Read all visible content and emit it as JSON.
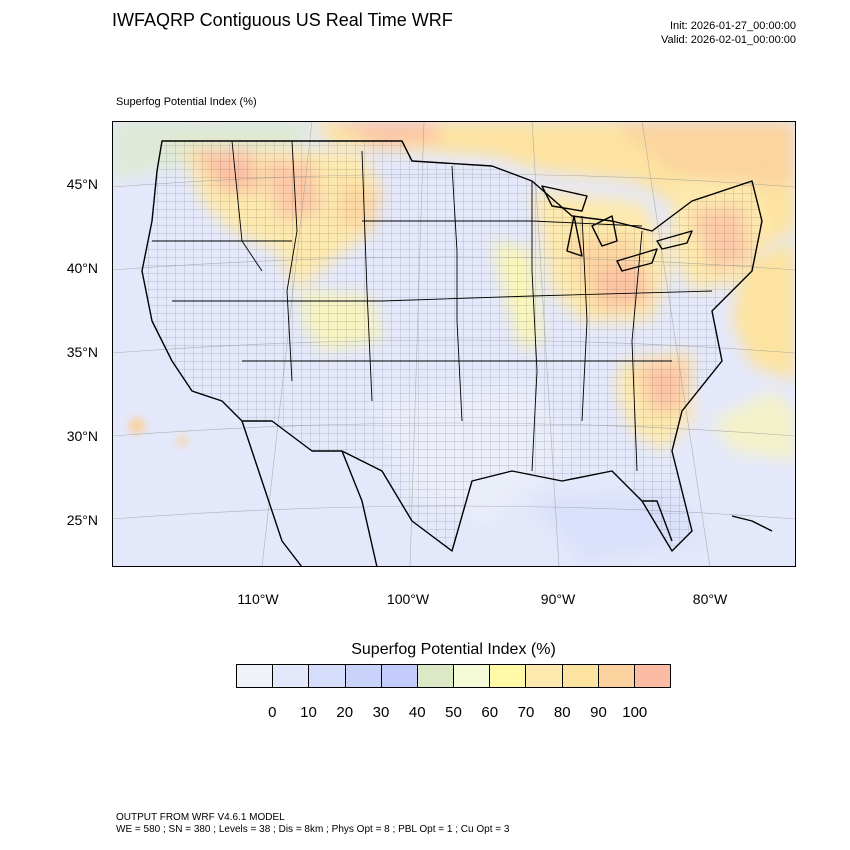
{
  "header": {
    "title": "IWFAQRP Contiguous US Real Time WRF",
    "init": "Init: 2026-01-27_00:00:00",
    "valid": "Valid: 2026-02-01_00:00:00"
  },
  "field_label": "Superfog Potential Index   (%)",
  "axes": {
    "lat_labels": [
      "45°N",
      "40°N",
      "35°N",
      "30°N",
      "25°N"
    ],
    "lon_labels": [
      "110°W",
      "100°W",
      "90°W",
      "80°W"
    ]
  },
  "colorbar": {
    "title": "Superfog Potential Index  (%)",
    "ticks": [
      "0",
      "10",
      "20",
      "30",
      "40",
      "50",
      "60",
      "70",
      "80",
      "90",
      "100"
    ],
    "colors": [
      "#eff2f8",
      "#e4e8fb",
      "#d6ddfb",
      "#c9d3fa",
      "#c2cbfc",
      "#dde9c6",
      "#f4fbd6",
      "#fff9a8",
      "#fde9ae",
      "#fde3a0",
      "#fcd29e",
      "#fcbca4"
    ]
  },
  "footer": {
    "line1": "OUTPUT FROM WRF V4.6.1 MODEL",
    "line2": "WE = 580 ; SN = 380 ; Levels = 38 ; Dis = 8km ; Phys Opt = 8 ; PBL Opt = 1 ; Cu Opt = 3"
  },
  "colors": {
    "background_field": "#e4e8fb",
    "high_index": "#fcbca4",
    "mid_index": "#fde9ae",
    "low_index": "#fff9a8"
  }
}
